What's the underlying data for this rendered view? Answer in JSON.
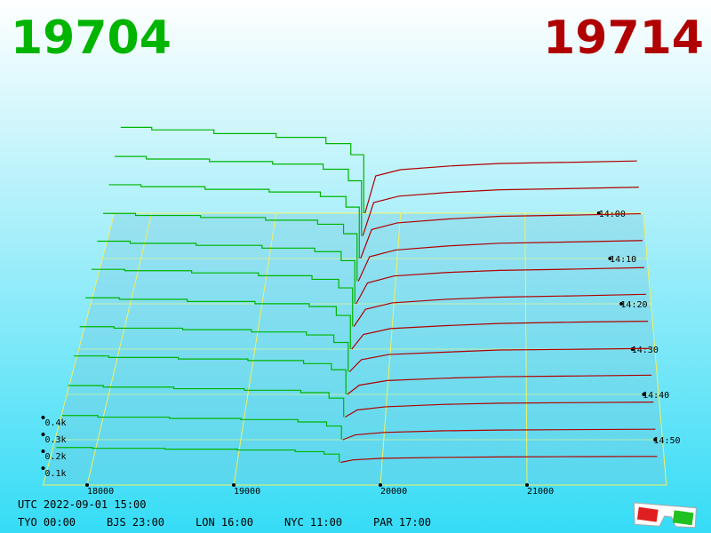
{
  "chart_data": {
    "type": "depth3d",
    "bid_price": "19704",
    "ask_price": "19714",
    "bid_color": "#00b400",
    "ask_color": "#b00000",
    "xlim": [
      17700,
      21950
    ],
    "xticks": [
      18000,
      19000,
      20000,
      21000
    ],
    "zlim": [
      "2022-09-01T14:00",
      "2022-09-01T15:00"
    ],
    "zticks": [
      {
        "value": "2022-09-01T14:00",
        "label": "14:00"
      },
      {
        "value": "2022-09-01T14:10",
        "label": "14:10"
      },
      {
        "value": "2022-09-01T14:20",
        "label": "14:20"
      },
      {
        "value": "2022-09-01T14:30",
        "label": "14:30"
      },
      {
        "value": "2022-09-01T14:40",
        "label": "14:40"
      },
      {
        "value": "2022-09-01T14:50",
        "label": "14:50"
      }
    ],
    "dticks": [
      {
        "value": 100,
        "label": "0.1k"
      },
      {
        "value": 200,
        "label": "0.2k"
      },
      {
        "value": 300,
        "label": "0.3k"
      },
      {
        "value": 400,
        "label": "0.4k"
      }
    ],
    "bid_prices": [
      17750,
      18000,
      18500,
      19000,
      19400,
      19600,
      19704
    ],
    "ask_prices": [
      19714,
      19800,
      20000,
      20400,
      20800,
      21400,
      21900
    ],
    "snapshots": [
      {
        "time": "2022-09-01T14:00",
        "bids": [
          690,
          670,
          640,
          610,
          560,
          470,
          0
        ],
        "asks": [
          0,
          300,
          350,
          380,
          400,
          410,
          420
        ]
      },
      {
        "time": "2022-09-01T14:05",
        "bids": [
          620,
          600,
          580,
          560,
          520,
          430,
          0
        ],
        "asks": [
          0,
          260,
          310,
          340,
          360,
          370,
          380
        ]
      },
      {
        "time": "2022-09-01T14:10",
        "bids": [
          560,
          545,
          525,
          505,
          470,
          390,
          0
        ],
        "asks": [
          0,
          220,
          270,
          300,
          320,
          330,
          340
        ]
      },
      {
        "time": "2022-09-01T14:15",
        "bids": [
          500,
          485,
          470,
          450,
          420,
          350,
          0
        ],
        "asks": [
          0,
          180,
          230,
          260,
          280,
          290,
          300
        ]
      },
      {
        "time": "2022-09-01T14:20",
        "bids": [
          450,
          435,
          420,
          400,
          375,
          310,
          0
        ],
        "asks": [
          0,
          150,
          200,
          225,
          240,
          250,
          260
        ]
      },
      {
        "time": "2022-09-01T14:25",
        "bids": [
          400,
          390,
          375,
          355,
          330,
          270,
          0
        ],
        "asks": [
          0,
          120,
          165,
          190,
          205,
          215,
          225
        ]
      },
      {
        "time": "2022-09-01T14:30",
        "bids": [
          350,
          340,
          325,
          310,
          290,
          230,
          0
        ],
        "asks": [
          0,
          100,
          140,
          160,
          175,
          185,
          190
        ]
      },
      {
        "time": "2022-09-01T14:35",
        "bids": [
          300,
          290,
          280,
          265,
          245,
          195,
          0
        ],
        "asks": [
          0,
          80,
          115,
          130,
          145,
          150,
          155
        ]
      },
      {
        "time": "2022-09-01T14:40",
        "bids": [
          250,
          240,
          230,
          220,
          200,
          160,
          0
        ],
        "asks": [
          0,
          60,
          90,
          105,
          115,
          120,
          125
        ]
      },
      {
        "time": "2022-09-01T14:45",
        "bids": [
          200,
          190,
          180,
          170,
          155,
          120,
          0
        ],
        "asks": [
          0,
          45,
          65,
          80,
          88,
          92,
          95
        ]
      },
      {
        "time": "2022-09-01T14:50",
        "bids": [
          150,
          140,
          132,
          125,
          110,
          85,
          0
        ],
        "asks": [
          0,
          30,
          45,
          55,
          60,
          63,
          65
        ]
      },
      {
        "time": "2022-09-01T14:55",
        "bids": [
          90,
          85,
          80,
          75,
          65,
          50,
          0
        ],
        "asks": [
          0,
          15,
          25,
          30,
          33,
          35,
          36
        ]
      }
    ],
    "utc_label": "UTC 2022-09-01 15:00",
    "zones": [
      "TYO 00:00",
      "BJS 23:00",
      "LON 16:00",
      "NYC 11:00",
      "PAR 17:00"
    ]
  }
}
